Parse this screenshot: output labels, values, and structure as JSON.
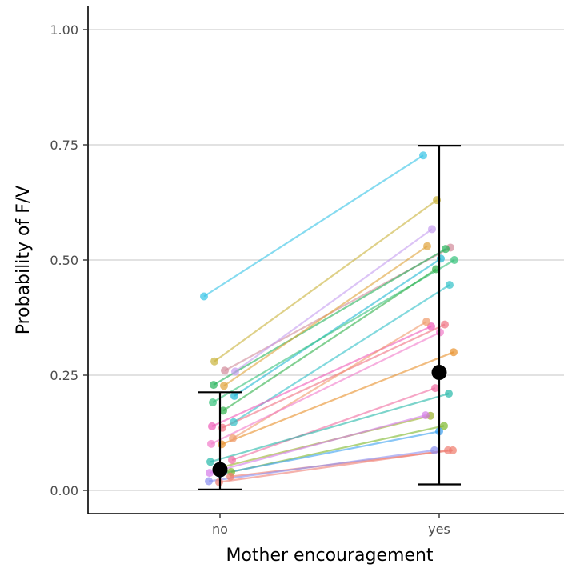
{
  "chart_data": {
    "type": "scatter",
    "title": "",
    "xlabel": "Mother encouragement",
    "ylabel": "Probability of F/V",
    "categories": [
      "no",
      "yes"
    ],
    "ylim": [
      -0.05,
      1.05
    ],
    "yticks": [
      0.0,
      0.25,
      0.5,
      0.75,
      1.0
    ],
    "ytick_labels": [
      "0.00",
      "0.25",
      "0.50",
      "0.75",
      "1.00"
    ],
    "grid": "horizontal major",
    "legend": "none",
    "summary": {
      "no": {
        "mean": 0.045,
        "lower": 0.002,
        "upper": 0.213
      },
      "yes": {
        "mean": 0.256,
        "lower": 0.013,
        "upper": 0.748
      }
    },
    "series": [
      {
        "values": [
          0.421,
          0.727
        ],
        "color": "#35c3e6"
      },
      {
        "values": [
          0.28,
          0.63
        ],
        "color": "#c9b33a"
      },
      {
        "values": [
          0.26,
          0.527
        ],
        "color": "#d18a9a"
      },
      {
        "values": [
          0.258,
          0.567
        ],
        "color": "#c49cf0"
      },
      {
        "values": [
          0.229,
          0.524
        ],
        "color": "#24b35a"
      },
      {
        "values": [
          0.227,
          0.53
        ],
        "color": "#e0a33a"
      },
      {
        "values": [
          0.205,
          0.503
        ],
        "color": "#20b8d4"
      },
      {
        "values": [
          0.191,
          0.5
        ],
        "color": "#35c27a"
      },
      {
        "values": [
          0.173,
          0.48
        ],
        "color": "#2fb04a"
      },
      {
        "values": [
          0.148,
          0.446
        ],
        "color": "#30c0c8"
      },
      {
        "values": [
          0.139,
          0.356
        ],
        "color": "#f05ab8"
      },
      {
        "values": [
          0.136,
          0.36
        ],
        "color": "#f07080"
      },
      {
        "values": [
          0.113,
          0.366
        ],
        "color": "#f09a6a"
      },
      {
        "values": [
          0.101,
          0.343
        ],
        "color": "#f27ac9"
      },
      {
        "values": [
          0.1,
          0.3
        ],
        "color": "#e8902a"
      },
      {
        "values": [
          0.066,
          0.222
        ],
        "color": "#f06aa0"
      },
      {
        "values": [
          0.062,
          0.21
        ],
        "color": "#25b8a8"
      },
      {
        "values": [
          0.05,
          0.162
        ],
        "color": "#9ab22a"
      },
      {
        "values": [
          0.04,
          0.14
        ],
        "color": "#7cb82a"
      },
      {
        "values": [
          0.038,
          0.163
        ],
        "color": "#d47ae8"
      },
      {
        "values": [
          0.036,
          0.128
        ],
        "color": "#3aa0f0"
      },
      {
        "values": [
          0.03,
          0.087
        ],
        "color": "#f07a6a"
      },
      {
        "values": [
          0.02,
          0.087
        ],
        "color": "#8a8ef0"
      },
      {
        "values": [
          0.018,
          0.087
        ],
        "color": "#ee7e74"
      }
    ],
    "colors": {
      "mean": "#000000",
      "grid": "#d9d9d9",
      "axis": "#000000"
    }
  }
}
